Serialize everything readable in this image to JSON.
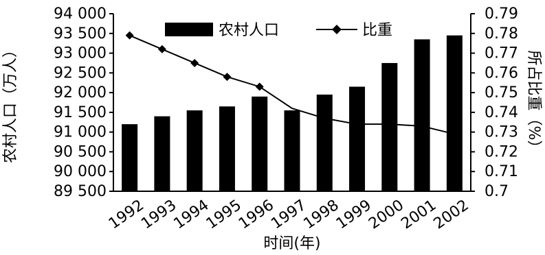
{
  "chart_data": {
    "type": "bar",
    "categories": [
      "1992",
      "1993",
      "1994",
      "1995",
      "1996",
      "1997",
      "1998",
      "1999",
      "2000",
      "2001",
      "2002"
    ],
    "series": [
      {
        "name": "农村人口",
        "type": "bar",
        "axis": "left",
        "values": [
          91200,
          91400,
          91550,
          91650,
          91900,
          91550,
          91950,
          92150,
          92750,
          93350,
          93450
        ]
      },
      {
        "name": "比重",
        "type": "line",
        "axis": "right",
        "values": [
          0.779,
          0.772,
          0.765,
          0.758,
          0.753,
          0.742,
          0.737,
          0.734,
          0.734,
          0.733,
          0.729
        ]
      }
    ],
    "xlabel": "时间(年)",
    "ylabel_left": "农村人口（万人）",
    "ylabel_right": "所占比重（%）",
    "ylim_left": [
      89500,
      94000
    ],
    "ylim_right": [
      0.7,
      0.79
    ],
    "yticks_left": [
      "89 500",
      "90 000",
      "90 500",
      "91 000",
      "91 500",
      "92 000",
      "92 500",
      "93 000",
      "93 500",
      "94 000"
    ],
    "yticks_right": [
      "0.7",
      "0.71",
      "0.72",
      "0.73",
      "0.74",
      "0.75",
      "0.76",
      "0.77",
      "0.78",
      "0.79"
    ],
    "legend_position": "top-center",
    "colors": {
      "bar": "#000000",
      "line": "#000000",
      "background": "#ffffff"
    }
  }
}
